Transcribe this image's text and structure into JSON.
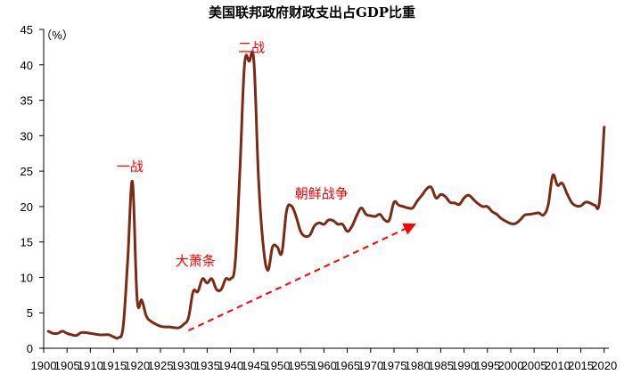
{
  "chart_data": {
    "type": "line",
    "title": "美国联邦政府财政支出占GDP比重",
    "unit_label": "（%）",
    "xlim": [
      1900,
      2021
    ],
    "ylim": [
      0,
      45
    ],
    "x_ticks": [
      1900,
      1905,
      1910,
      1915,
      1920,
      1925,
      1930,
      1935,
      1940,
      1945,
      1950,
      1955,
      1960,
      1965,
      1970,
      1975,
      1980,
      1985,
      1990,
      1995,
      2000,
      2005,
      2010,
      2015,
      2020
    ],
    "y_ticks": [
      0,
      5,
      10,
      15,
      20,
      25,
      30,
      35,
      40,
      45
    ],
    "grid": false,
    "series": [
      {
        "color": "#7b2a14",
        "x": [
          1901,
          1902,
          1903,
          1904,
          1905,
          1906,
          1907,
          1908,
          1909,
          1910,
          1911,
          1912,
          1913,
          1914,
          1915,
          1916,
          1917,
          1918,
          1919,
          1920,
          1921,
          1922,
          1923,
          1924,
          1925,
          1926,
          1927,
          1928,
          1929,
          1930,
          1931,
          1932,
          1933,
          1934,
          1935,
          1936,
          1937,
          1938,
          1939,
          1940,
          1941,
          1942,
          1943,
          1944,
          1945,
          1946,
          1947,
          1948,
          1949,
          1950,
          1951,
          1952,
          1953,
          1954,
          1955,
          1956,
          1957,
          1958,
          1959,
          1960,
          1961,
          1962,
          1963,
          1964,
          1965,
          1966,
          1967,
          1968,
          1969,
          1970,
          1971,
          1972,
          1973,
          1974,
          1975,
          1976,
          1977,
          1978,
          1979,
          1980,
          1981,
          1982,
          1983,
          1984,
          1985,
          1986,
          1987,
          1988,
          1989,
          1990,
          1991,
          1992,
          1993,
          1994,
          1995,
          1996,
          1997,
          1998,
          1999,
          2000,
          2001,
          2002,
          2003,
          2004,
          2005,
          2006,
          2007,
          2008,
          2009,
          2010,
          2011,
          2012,
          2013,
          2014,
          2015,
          2016,
          2017,
          2018,
          2019,
          2020
        ],
        "values": [
          2.4,
          2.1,
          2.1,
          2.4,
          2.1,
          1.9,
          1.8,
          2.2,
          2.2,
          2.1,
          2.0,
          1.9,
          1.9,
          1.9,
          1.6,
          1.5,
          3.0,
          12.5,
          23.5,
          7.0,
          6.8,
          4.5,
          3.8,
          3.4,
          3.1,
          3.0,
          3.0,
          2.9,
          2.9,
          3.4,
          4.3,
          8.0,
          8.0,
          9.8,
          9.2,
          9.8,
          8.3,
          8.3,
          9.8,
          9.8,
          12.0,
          25.0,
          40.0,
          40.5,
          40.5,
          24.0,
          14.5,
          11.0,
          14.3,
          14.3,
          13.5,
          19.4,
          20.1,
          18.7,
          16.5,
          15.8,
          16.0,
          17.3,
          17.7,
          17.5,
          18.1,
          18.0,
          17.5,
          17.5,
          16.5,
          17.2,
          18.7,
          19.8,
          18.9,
          18.7,
          18.6,
          18.9,
          18.1,
          18.1,
          20.6,
          20.2,
          20.0,
          19.8,
          19.8,
          20.8,
          21.6,
          22.5,
          22.7,
          21.2,
          21.7,
          21.4,
          20.6,
          20.5,
          20.3,
          21.2,
          21.6,
          21.0,
          20.4,
          20.0,
          20.0,
          19.3,
          18.9,
          18.3,
          17.9,
          17.6,
          17.6,
          18.1,
          18.8,
          18.9,
          19.0,
          19.1,
          18.8,
          20.2,
          24.4,
          23.0,
          23.3,
          21.9,
          20.6,
          20.1,
          20.1,
          20.6,
          20.5,
          20.2,
          20.7,
          31.2
        ]
      }
    ],
    "annotations": [
      {
        "text": "一战",
        "x": 1918.5,
        "y": 25.0
      },
      {
        "text": "二战",
        "x": 1944.5,
        "y": 41.8
      },
      {
        "text": "大萧条",
        "x": 1932.5,
        "y": 11.7
      },
      {
        "text": "朝鲜战争",
        "x": 1959.5,
        "y": 21.2
      }
    ],
    "trend_arrow": {
      "from": [
        1931,
        2.5
      ],
      "to": [
        1979.5,
        17.5
      ],
      "color": "#ff0000"
    }
  }
}
